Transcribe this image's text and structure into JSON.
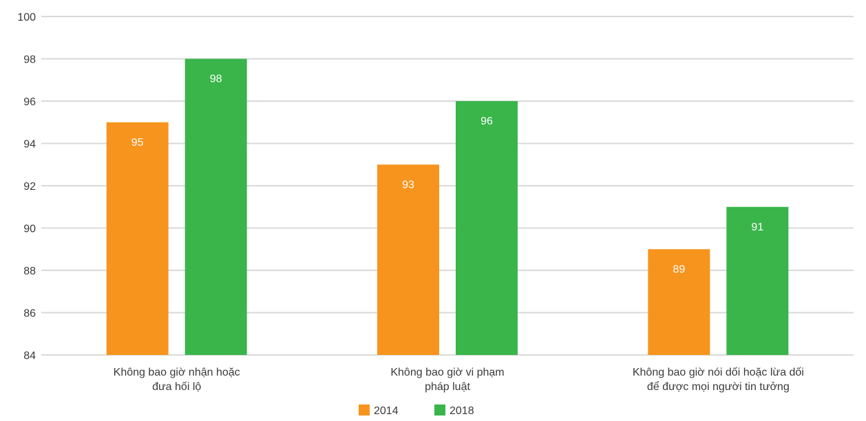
{
  "chart_data": {
    "type": "bar",
    "title": "",
    "xlabel": "",
    "ylabel": "",
    "ylim": [
      84,
      100
    ],
    "yticks": [
      84,
      86,
      88,
      90,
      92,
      94,
      96,
      98,
      100
    ],
    "grid": true,
    "legend_position": "bottom",
    "categories": [
      [
        "Không bao giờ nhận hoặc",
        "đưa hối lộ"
      ],
      [
        "Không bao giờ vi phạm",
        "pháp luật"
      ],
      [
        "Không bao giờ nói dối hoặc lừa dối",
        "để được mọi người tin tưởng"
      ]
    ],
    "series": [
      {
        "name": "2014",
        "color": "#F7941D",
        "values": [
          95,
          93,
          89
        ],
        "labels": [
          "95",
          "93",
          "89"
        ]
      },
      {
        "name": "2018",
        "color": "#39B54A",
        "values": [
          98,
          96,
          91
        ],
        "labels": [
          "98",
          "96",
          "91"
        ]
      }
    ]
  }
}
